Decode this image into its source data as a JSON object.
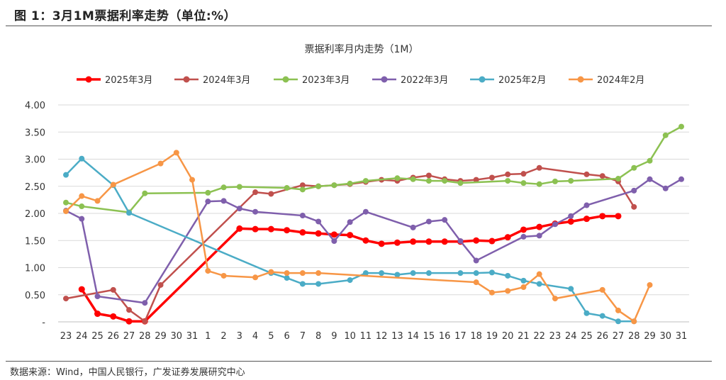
{
  "figure": {
    "title": "图 1：3月1M票据利率走势（单位:%）",
    "source": "数据来源：Wind，中国人民银行，广发证券发展研究中心"
  },
  "chart_data": {
    "type": "line",
    "title": "票据利率月内走势（1M）",
    "xlabel": "",
    "ylabel": "",
    "ylim": [
      0,
      4
    ],
    "y_ticks": [
      "-",
      "0.50",
      "1.00",
      "1.50",
      "2.00",
      "2.50",
      "3.00",
      "3.50",
      "4.00"
    ],
    "x": [
      "23",
      "24",
      "25",
      "26",
      "27",
      "28",
      "29",
      "30",
      "31",
      "1",
      "2",
      "3",
      "4",
      "5",
      "6",
      "7",
      "8",
      "9",
      "10",
      "11",
      "12",
      "13",
      "14",
      "15",
      "16",
      "17",
      "18",
      "19",
      "20",
      "21",
      "22",
      "23",
      "24",
      "25",
      "26",
      "27",
      "28",
      "29",
      "30",
      "31"
    ],
    "grid": true,
    "legend_position": "top",
    "series": [
      {
        "name": "2025年3月",
        "color": "#ff0000",
        "marker_every": true,
        "linewidth": 3.5,
        "values": [
          null,
          0.6,
          0.15,
          0.1,
          0.01,
          0.01,
          null,
          null,
          null,
          null,
          null,
          1.72,
          1.71,
          1.71,
          1.69,
          1.65,
          1.63,
          1.61,
          1.6,
          1.5,
          1.44,
          1.46,
          1.48,
          1.48,
          1.48,
          1.48,
          1.5,
          1.49,
          1.56,
          1.7,
          1.75,
          1.81,
          1.85,
          1.9,
          1.95,
          1.95,
          null,
          null,
          null,
          null
        ]
      },
      {
        "name": "2024年3月",
        "color": "#c0504d",
        "marker_every": true,
        "linewidth": 2.5,
        "values": [
          0.43,
          null,
          null,
          0.59,
          0.22,
          0.01,
          0.68,
          null,
          null,
          null,
          null,
          null,
          2.39,
          2.36,
          null,
          2.52,
          2.5,
          2.52,
          2.54,
          2.58,
          2.62,
          2.6,
          2.66,
          2.7,
          2.63,
          2.6,
          2.62,
          2.66,
          2.72,
          2.73,
          2.84,
          null,
          null,
          2.72,
          2.69,
          2.59,
          2.12,
          null,
          null,
          null
        ]
      },
      {
        "name": "2023年3月",
        "color": "#8cc152",
        "marker_every": true,
        "linewidth": 2.5,
        "values": [
          2.2,
          2.13,
          null,
          null,
          2.02,
          2.37,
          null,
          null,
          null,
          2.38,
          2.48,
          2.49,
          null,
          null,
          2.47,
          2.44,
          2.5,
          2.52,
          2.55,
          2.6,
          null,
          2.65,
          2.63,
          2.6,
          2.6,
          2.56,
          null,
          null,
          2.6,
          2.56,
          2.54,
          2.59,
          2.6,
          null,
          null,
          2.64,
          2.84,
          2.97,
          3.44,
          3.6
        ]
      },
      {
        "name": "2022年3月",
        "color": "#7f5fac",
        "marker_every": true,
        "linewidth": 2.5,
        "values": [
          2.05,
          1.9,
          0.47,
          null,
          null,
          0.35,
          null,
          null,
          null,
          2.22,
          2.23,
          2.09,
          2.03,
          null,
          null,
          1.96,
          1.85,
          1.49,
          1.84,
          2.03,
          null,
          null,
          1.74,
          1.85,
          1.88,
          1.49,
          1.13,
          null,
          null,
          1.57,
          1.59,
          1.8,
          1.95,
          2.15,
          null,
          null,
          2.42,
          2.63,
          2.46,
          2.63
        ]
      },
      {
        "name": "2025年2月",
        "color": "#4bacc6",
        "marker_every": true,
        "linewidth": 2.5,
        "values": [
          2.71,
          3.01,
          null,
          2.52,
          2.01,
          null,
          null,
          null,
          null,
          null,
          null,
          null,
          null,
          0.9,
          0.81,
          0.7,
          0.7,
          null,
          0.77,
          0.9,
          0.9,
          0.87,
          0.9,
          0.9,
          null,
          0.9,
          0.9,
          0.91,
          0.85,
          0.76,
          0.7,
          null,
          0.61,
          0.16,
          0.11,
          0.01,
          0.01,
          null,
          null,
          null
        ]
      },
      {
        "name": "2024年2月",
        "color": "#f79646",
        "marker_every": true,
        "linewidth": 2.5,
        "values": [
          2.04,
          2.32,
          2.23,
          2.53,
          null,
          null,
          2.92,
          3.12,
          2.62,
          0.94,
          0.85,
          null,
          0.82,
          0.92,
          0.9,
          0.9,
          0.9,
          null,
          null,
          null,
          null,
          null,
          null,
          null,
          null,
          null,
          0.73,
          0.54,
          0.57,
          0.64,
          0.88,
          0.43,
          null,
          null,
          0.59,
          0.21,
          0.01,
          0.68,
          null,
          null
        ]
      }
    ]
  }
}
